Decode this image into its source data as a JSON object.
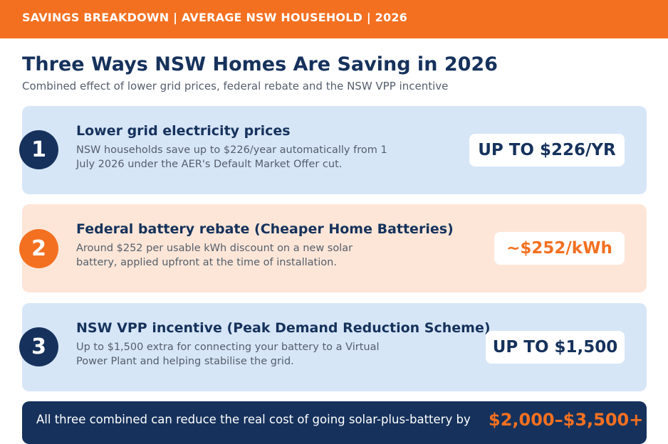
{
  "header": {
    "banner": "SAVINGS BREAKDOWN  |  AVERAGE NSW HOUSEHOLD  |  2026"
  },
  "main": {
    "title": "Three Ways NSW Homes Are Saving in 2026",
    "subtitle": "Combined effect of lower grid prices, federal rebate and the NSW VPP incentive"
  },
  "cards": [
    {
      "number": "1",
      "heading": "Lower grid electricity prices",
      "description": "NSW households save up to $226/year automatically from 1 July 2026 under the AER's Default Market Offer cut.",
      "value": "UP TO $226/YR"
    },
    {
      "number": "2",
      "heading": "Federal battery rebate (Cheaper Home Batteries)",
      "description": "Around $252 per usable kWh discount on a new solar battery, applied upfront at the time of installation.",
      "value": "~$252/kWh"
    },
    {
      "number": "3",
      "heading": "NSW VPP incentive (Peak Demand Reduction Scheme)",
      "description": "Up to $1,500 extra for connecting your battery to a Virtual Power Plant and helping stabilise the grid.",
      "value": "UP TO $1,500"
    }
  ],
  "footer": {
    "text": "All three combined can reduce the real cost of going solar-plus-battery by",
    "value": "$2,000–$3,500+"
  },
  "colors": {
    "brand_orange": "#f37021",
    "navy": "#16325c",
    "card_blue": "#d6e6f7",
    "card_peach": "#fde6d8"
  }
}
